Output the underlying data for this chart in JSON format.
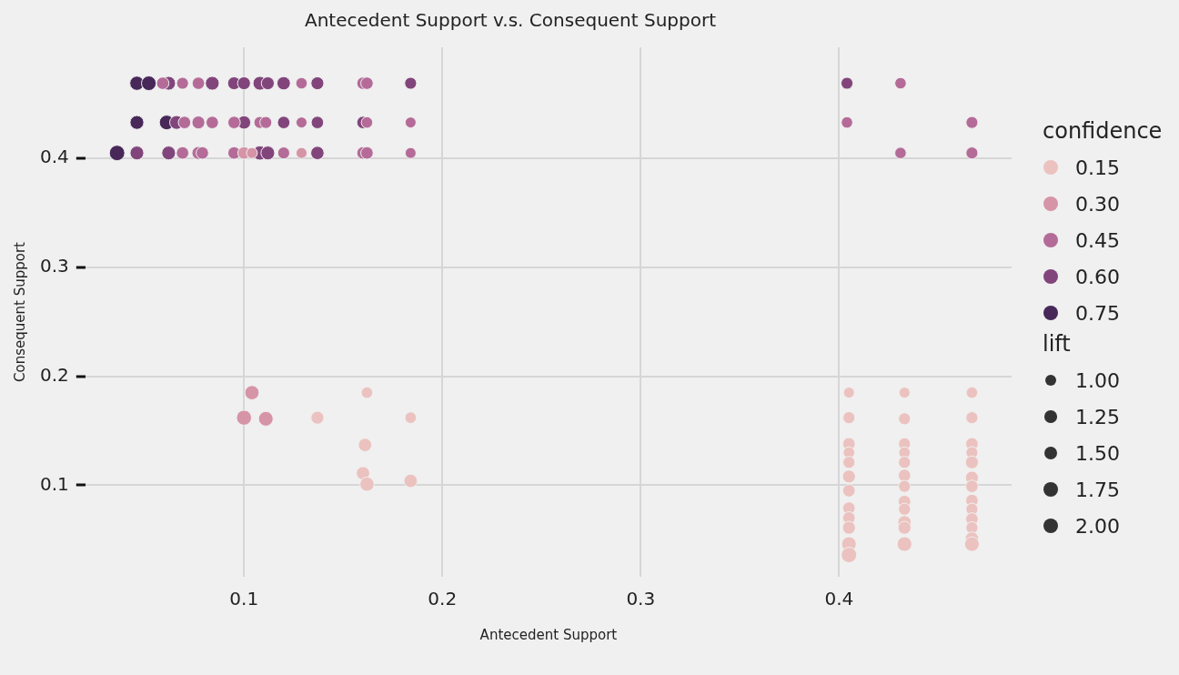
{
  "chart_data": {
    "type": "bubble",
    "title": "Antecedent Support v.s. Consequent Support",
    "xlabel": "Antecedent Support",
    "ylabel": "Consequent Support",
    "legend_title": "confidence",
    "annotations": [
      "lift"
    ],
    "xlim": [
      0.02,
      0.487
    ],
    "xticks": [
      0.1,
      0.2,
      0.3,
      0.4
    ],
    "ylim": [
      0.016,
      0.502
    ],
    "yticks": [
      0.1,
      0.2,
      0.3,
      0.4
    ],
    "grid": true,
    "legend": "right",
    "size_legend": [
      {
        "value": 1,
        "label": "1.00"
      },
      {
        "value": 1.25,
        "label": "1.25"
      },
      {
        "value": 1.5,
        "label": "1.50"
      },
      {
        "value": 1.75,
        "label": "1.75"
      },
      {
        "value": 2,
        "label": "2.00"
      }
    ],
    "series": [
      {
        "name": "0.15",
        "color": "#ebc2bf",
        "x": [
          0.137,
          0.162,
          0.184,
          0.161,
          0.16,
          0.162,
          0.184,
          0.405,
          0.405,
          0.405,
          0.405,
          0.405,
          0.405,
          0.405,
          0.405,
          0.405,
          0.405,
          0.405,
          0.405,
          0.433,
          0.433,
          0.433,
          0.433,
          0.433,
          0.433,
          0.433,
          0.433,
          0.433,
          0.433,
          0.433,
          0.433,
          0.467,
          0.467,
          0.467,
          0.467,
          0.467,
          0.467,
          0.467,
          0.467,
          0.467,
          0.467,
          0.467,
          0.467,
          0.467
        ],
        "values": [
          0.162,
          0.185,
          0.162,
          0.137,
          0.111,
          0.101,
          0.104,
          0.185,
          0.162,
          0.138,
          0.13,
          0.121,
          0.108,
          0.095,
          0.079,
          0.07,
          0.061,
          0.046,
          0.036,
          0.185,
          0.161,
          0.138,
          0.13,
          0.121,
          0.109,
          0.099,
          0.085,
          0.078,
          0.066,
          0.061,
          0.046,
          0.185,
          0.162,
          0.138,
          0.13,
          0.121,
          0.107,
          0.099,
          0.086,
          0.078,
          0.069,
          0.061,
          0.051,
          0.046
        ],
        "sizes": [
          1.4,
          1.1,
          1.1,
          1.5,
          1.5,
          1.7,
          1.5,
          1.0,
          1.2,
          1.3,
          1.1,
          1.2,
          1.4,
          1.3,
          1.3,
          1.3,
          1.4,
          1.8,
          2.0,
          1.0,
          1.2,
          1.2,
          1.1,
          1.2,
          1.3,
          1.2,
          1.3,
          1.2,
          1.5,
          1.4,
          1.8,
          1.1,
          1.2,
          1.3,
          1.2,
          1.4,
          1.4,
          1.3,
          1.3,
          1.2,
          1.3,
          1.2,
          1.5,
          1.8
        ]
      },
      {
        "name": "0.30",
        "color": "#d694a7",
        "x": [
          0.104,
          0.1,
          0.111,
          0.1,
          0.104,
          0.129
        ],
        "values": [
          0.185,
          0.162,
          0.161,
          0.405,
          0.405,
          0.405
        ],
        "sizes": [
          1.7,
          1.9,
          1.8,
          1.3,
          1.0,
          1.0
        ]
      },
      {
        "name": "0.45",
        "color": "#b46b98",
        "x": [
          0.059,
          0.069,
          0.077,
          0.129,
          0.16,
          0.162,
          0.07,
          0.077,
          0.084,
          0.095,
          0.108,
          0.111,
          0.129,
          0.162,
          0.184,
          0.069,
          0.077,
          0.079,
          0.095,
          0.12,
          0.16,
          0.162,
          0.184,
          0.431,
          0.404,
          0.467,
          0.431,
          0.467
        ],
        "values": [
          0.469,
          0.469,
          0.469,
          0.469,
          0.469,
          0.469,
          0.433,
          0.433,
          0.433,
          0.433,
          0.433,
          0.433,
          0.433,
          0.433,
          0.433,
          0.405,
          0.405,
          0.405,
          0.405,
          0.405,
          0.405,
          0.405,
          0.405,
          0.469,
          0.433,
          0.433,
          0.405,
          0.405
        ],
        "sizes": [
          1.3,
          1.2,
          1.3,
          1.1,
          1.3,
          1.3,
          1.3,
          1.4,
          1.3,
          1.3,
          1.2,
          1.2,
          1.0,
          1.1,
          1.0,
          1.3,
          1.4,
          1.3,
          1.3,
          1.2,
          1.3,
          1.3,
          1.0,
          1.1,
          1.1,
          1.2,
          1.1,
          1.2
        ]
      },
      {
        "name": "0.60",
        "color": "#81457b",
        "x": [
          0.062,
          0.084,
          0.095,
          0.1,
          0.108,
          0.112,
          0.12,
          0.137,
          0.184,
          0.066,
          0.1,
          0.12,
          0.137,
          0.16,
          0.046,
          0.062,
          0.108,
          0.112,
          0.137,
          0.404
        ],
        "values": [
          0.469,
          0.469,
          0.469,
          0.469,
          0.469,
          0.469,
          0.469,
          0.469,
          0.469,
          0.433,
          0.433,
          0.433,
          0.433,
          0.433,
          0.405,
          0.405,
          0.405,
          0.405,
          0.405,
          0.469
        ],
        "sizes": [
          1.6,
          1.6,
          1.4,
          1.4,
          1.6,
          1.4,
          1.5,
          1.4,
          1.2,
          1.6,
          1.5,
          1.3,
          1.3,
          1.3,
          1.6,
          1.6,
          1.7,
          1.6,
          1.5,
          1.2
        ]
      },
      {
        "name": "0.75",
        "color": "#472859",
        "x": [
          0.046,
          0.052,
          0.046,
          0.061,
          0.036
        ],
        "values": [
          0.469,
          0.469,
          0.433,
          0.433,
          0.405
        ],
        "sizes": [
          1.7,
          1.8,
          1.6,
          1.8,
          2.0
        ]
      }
    ]
  }
}
